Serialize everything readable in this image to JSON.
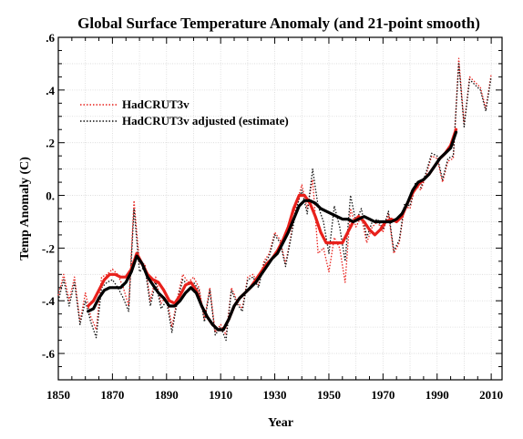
{
  "chart_data": {
    "type": "line",
    "title": "Global Surface Temperature Anomaly (and 21-point smooth)",
    "xlabel": "Year",
    "ylabel": "Temp Anomaly (C)",
    "xlim": [
      1850,
      2014
    ],
    "ylim": [
      -0.7,
      0.6
    ],
    "xticks": [
      1850,
      1870,
      1890,
      1910,
      1930,
      1950,
      1970,
      1990,
      2010
    ],
    "xtick_labels": [
      "1850",
      "1870",
      "1890",
      "1910",
      "1930",
      "1950",
      "1970",
      "1990",
      "2010"
    ],
    "yticks": [
      0.6,
      0.4,
      0.2,
      0.0,
      -0.2,
      -0.4,
      -0.6
    ],
    "ytick_labels": [
      ".6",
      ".4",
      ".2",
      "0.",
      "-.2",
      "-.4",
      "-.6"
    ],
    "grid": true,
    "legend_position": "top-left",
    "legend": [
      "HadCRUT3v",
      "HadCRUT3v adjusted (estimate)"
    ],
    "series": [
      {
        "name": "HadCRUT3v",
        "style": "dotted",
        "color": "#e8201b",
        "x": [
          1850,
          1852,
          1854,
          1856,
          1858,
          1860,
          1862,
          1864,
          1866,
          1868,
          1870,
          1872,
          1874,
          1876,
          1878,
          1880,
          1882,
          1884,
          1886,
          1888,
          1890,
          1892,
          1894,
          1896,
          1898,
          1900,
          1902,
          1904,
          1906,
          1908,
          1910,
          1912,
          1914,
          1916,
          1918,
          1920,
          1922,
          1924,
          1926,
          1928,
          1930,
          1932,
          1934,
          1936,
          1938,
          1940,
          1942,
          1944,
          1946,
          1948,
          1950,
          1952,
          1954,
          1956,
          1958,
          1960,
          1962,
          1964,
          1966,
          1968,
          1970,
          1972,
          1974,
          1976,
          1978,
          1980,
          1982,
          1984,
          1986,
          1988,
          1990,
          1992,
          1994,
          1996,
          1998,
          2000,
          2002,
          2004,
          2006,
          2008,
          2010
        ],
        "y": [
          -0.38,
          -0.3,
          -0.4,
          -0.31,
          -0.48,
          -0.37,
          -0.46,
          -0.51,
          -0.31,
          -0.3,
          -0.28,
          -0.3,
          -0.35,
          -0.42,
          -0.02,
          -0.26,
          -0.26,
          -0.4,
          -0.31,
          -0.41,
          -0.38,
          -0.5,
          -0.39,
          -0.3,
          -0.33,
          -0.31,
          -0.35,
          -0.47,
          -0.35,
          -0.52,
          -0.49,
          -0.53,
          -0.35,
          -0.4,
          -0.43,
          -0.31,
          -0.3,
          -0.34,
          -0.25,
          -0.22,
          -0.14,
          -0.17,
          -0.26,
          -0.15,
          -0.03,
          0.04,
          -0.05,
          0.06,
          -0.22,
          -0.2,
          -0.29,
          -0.16,
          -0.2,
          -0.33,
          -0.05,
          -0.12,
          -0.08,
          -0.18,
          -0.12,
          -0.1,
          -0.14,
          -0.07,
          -0.22,
          -0.18,
          -0.04,
          -0.05,
          0.04,
          0.02,
          0.08,
          0.15,
          0.14,
          0.05,
          0.13,
          0.14,
          0.52,
          0.27,
          0.45,
          0.43,
          0.41,
          0.33,
          0.46
        ]
      },
      {
        "name": "HadCRUT3v adjusted (estimate)",
        "style": "dotted",
        "color": "#111111",
        "x": [
          1850,
          1852,
          1854,
          1856,
          1858,
          1860,
          1862,
          1864,
          1866,
          1868,
          1870,
          1872,
          1874,
          1876,
          1878,
          1880,
          1882,
          1884,
          1886,
          1888,
          1890,
          1892,
          1894,
          1896,
          1898,
          1900,
          1902,
          1904,
          1906,
          1908,
          1910,
          1912,
          1914,
          1916,
          1918,
          1920,
          1922,
          1924,
          1926,
          1928,
          1930,
          1932,
          1934,
          1936,
          1938,
          1940,
          1942,
          1944,
          1946,
          1948,
          1950,
          1952,
          1954,
          1956,
          1958,
          1960,
          1962,
          1964,
          1966,
          1968,
          1970,
          1972,
          1974,
          1976,
          1978,
          1980,
          1982,
          1984,
          1986,
          1988,
          1990,
          1992,
          1994,
          1996,
          1998,
          2000,
          2002,
          2004,
          2006,
          2008,
          2010
        ],
        "y": [
          -0.4,
          -0.32,
          -0.42,
          -0.33,
          -0.49,
          -0.4,
          -0.48,
          -0.54,
          -0.35,
          -0.33,
          -0.32,
          -0.35,
          -0.39,
          -0.44,
          -0.05,
          -0.29,
          -0.27,
          -0.42,
          -0.33,
          -0.43,
          -0.4,
          -0.52,
          -0.4,
          -0.32,
          -0.34,
          -0.33,
          -0.36,
          -0.48,
          -0.36,
          -0.53,
          -0.5,
          -0.55,
          -0.36,
          -0.41,
          -0.44,
          -0.32,
          -0.31,
          -0.35,
          -0.26,
          -0.23,
          -0.15,
          -0.18,
          -0.27,
          -0.16,
          -0.05,
          0.02,
          -0.07,
          0.1,
          -0.04,
          -0.1,
          -0.22,
          -0.04,
          -0.12,
          -0.25,
          0.0,
          -0.1,
          -0.05,
          -0.16,
          -0.1,
          -0.09,
          -0.13,
          -0.06,
          -0.21,
          -0.17,
          -0.03,
          -0.04,
          0.05,
          0.03,
          0.09,
          0.16,
          0.15,
          0.06,
          0.14,
          0.15,
          0.5,
          0.26,
          0.44,
          0.42,
          0.4,
          0.32,
          0.45
        ]
      },
      {
        "style": "solid-thick",
        "color": "#e8201b",
        "x": [
          1861,
          1863,
          1865,
          1867,
          1869,
          1871,
          1873,
          1875,
          1877,
          1879,
          1881,
          1883,
          1885,
          1887,
          1889,
          1891,
          1893,
          1895,
          1897,
          1899,
          1901,
          1903,
          1905,
          1907,
          1909,
          1911,
          1913,
          1915,
          1917,
          1919,
          1921,
          1923,
          1925,
          1927,
          1929,
          1931,
          1933,
          1935,
          1937,
          1939,
          1941,
          1943,
          1945,
          1947,
          1949,
          1951,
          1953,
          1955,
          1957,
          1959,
          1961,
          1963,
          1965,
          1967,
          1969,
          1971,
          1973,
          1975,
          1977,
          1979,
          1981,
          1983,
          1985,
          1987,
          1989,
          1991,
          1993,
          1995,
          1997
        ],
        "y": [
          -0.42,
          -0.4,
          -0.36,
          -0.32,
          -0.3,
          -0.3,
          -0.31,
          -0.31,
          -0.28,
          -0.22,
          -0.26,
          -0.3,
          -0.32,
          -0.33,
          -0.36,
          -0.4,
          -0.41,
          -0.38,
          -0.34,
          -0.33,
          -0.36,
          -0.42,
          -0.46,
          -0.49,
          -0.51,
          -0.51,
          -0.47,
          -0.42,
          -0.39,
          -0.37,
          -0.35,
          -0.32,
          -0.29,
          -0.26,
          -0.24,
          -0.21,
          -0.17,
          -0.12,
          -0.05,
          0.0,
          0.0,
          -0.03,
          -0.08,
          -0.14,
          -0.18,
          -0.18,
          -0.18,
          -0.18,
          -0.14,
          -0.1,
          -0.08,
          -0.1,
          -0.13,
          -0.15,
          -0.13,
          -0.1,
          -0.09,
          -0.1,
          -0.08,
          -0.03,
          0.01,
          0.04,
          0.06,
          0.08,
          0.11,
          0.14,
          0.16,
          0.19,
          0.25
        ]
      },
      {
        "style": "solid-thick",
        "color": "#000000",
        "x": [
          1861,
          1863,
          1865,
          1867,
          1869,
          1871,
          1873,
          1875,
          1877,
          1879,
          1881,
          1883,
          1885,
          1887,
          1889,
          1891,
          1893,
          1895,
          1897,
          1899,
          1901,
          1903,
          1905,
          1907,
          1909,
          1911,
          1913,
          1915,
          1917,
          1919,
          1921,
          1923,
          1925,
          1927,
          1929,
          1931,
          1933,
          1935,
          1937,
          1939,
          1941,
          1943,
          1945,
          1947,
          1949,
          1951,
          1953,
          1955,
          1957,
          1959,
          1961,
          1963,
          1965,
          1967,
          1969,
          1971,
          1973,
          1975,
          1977,
          1979,
          1981,
          1983,
          1985,
          1987,
          1989,
          1991,
          1993,
          1995,
          1997
        ],
        "y": [
          -0.44,
          -0.43,
          -0.39,
          -0.36,
          -0.35,
          -0.35,
          -0.35,
          -0.33,
          -0.29,
          -0.23,
          -0.26,
          -0.31,
          -0.34,
          -0.37,
          -0.39,
          -0.42,
          -0.42,
          -0.4,
          -0.37,
          -0.35,
          -0.37,
          -0.42,
          -0.46,
          -0.49,
          -0.51,
          -0.51,
          -0.47,
          -0.42,
          -0.39,
          -0.37,
          -0.35,
          -0.33,
          -0.3,
          -0.27,
          -0.24,
          -0.22,
          -0.18,
          -0.14,
          -0.09,
          -0.04,
          -0.02,
          -0.02,
          -0.03,
          -0.05,
          -0.06,
          -0.07,
          -0.08,
          -0.09,
          -0.09,
          -0.1,
          -0.09,
          -0.08,
          -0.09,
          -0.1,
          -0.1,
          -0.1,
          -0.1,
          -0.09,
          -0.07,
          -0.03,
          0.02,
          0.05,
          0.06,
          0.08,
          0.11,
          0.14,
          0.16,
          0.18,
          0.24
        ]
      }
    ]
  }
}
